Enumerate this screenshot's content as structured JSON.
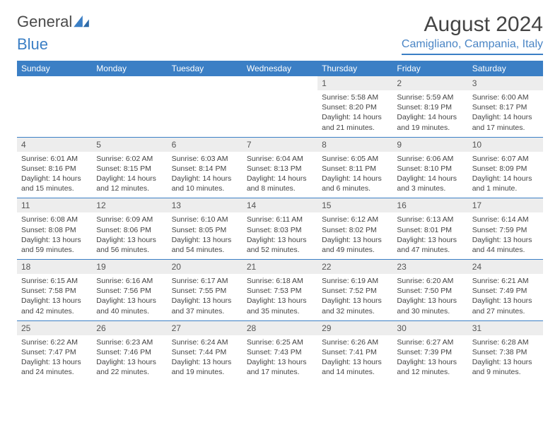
{
  "logo": {
    "part1": "General",
    "part2": "Blue"
  },
  "title": "August 2024",
  "location": "Camigliano, Campania, Italy",
  "colors": {
    "header_bg": "#3b7fc5",
    "header_text": "#ffffff",
    "daynum_bg": "#ededed",
    "rule": "#3b7fc5",
    "location_text": "#4a85c5"
  },
  "labels": {
    "sunrise": "Sunrise:",
    "sunset": "Sunset:",
    "daylight": "Daylight:"
  },
  "weekdays": [
    "Sunday",
    "Monday",
    "Tuesday",
    "Wednesday",
    "Thursday",
    "Friday",
    "Saturday"
  ],
  "weeks": [
    [
      null,
      null,
      null,
      null,
      {
        "d": "1",
        "sr": "5:58 AM",
        "ss": "8:20 PM",
        "dl": "14 hours and 21 minutes."
      },
      {
        "d": "2",
        "sr": "5:59 AM",
        "ss": "8:19 PM",
        "dl": "14 hours and 19 minutes."
      },
      {
        "d": "3",
        "sr": "6:00 AM",
        "ss": "8:17 PM",
        "dl": "14 hours and 17 minutes."
      }
    ],
    [
      {
        "d": "4",
        "sr": "6:01 AM",
        "ss": "8:16 PM",
        "dl": "14 hours and 15 minutes."
      },
      {
        "d": "5",
        "sr": "6:02 AM",
        "ss": "8:15 PM",
        "dl": "14 hours and 12 minutes."
      },
      {
        "d": "6",
        "sr": "6:03 AM",
        "ss": "8:14 PM",
        "dl": "14 hours and 10 minutes."
      },
      {
        "d": "7",
        "sr": "6:04 AM",
        "ss": "8:13 PM",
        "dl": "14 hours and 8 minutes."
      },
      {
        "d": "8",
        "sr": "6:05 AM",
        "ss": "8:11 PM",
        "dl": "14 hours and 6 minutes."
      },
      {
        "d": "9",
        "sr": "6:06 AM",
        "ss": "8:10 PM",
        "dl": "14 hours and 3 minutes."
      },
      {
        "d": "10",
        "sr": "6:07 AM",
        "ss": "8:09 PM",
        "dl": "14 hours and 1 minute."
      }
    ],
    [
      {
        "d": "11",
        "sr": "6:08 AM",
        "ss": "8:08 PM",
        "dl": "13 hours and 59 minutes."
      },
      {
        "d": "12",
        "sr": "6:09 AM",
        "ss": "8:06 PM",
        "dl": "13 hours and 56 minutes."
      },
      {
        "d": "13",
        "sr": "6:10 AM",
        "ss": "8:05 PM",
        "dl": "13 hours and 54 minutes."
      },
      {
        "d": "14",
        "sr": "6:11 AM",
        "ss": "8:03 PM",
        "dl": "13 hours and 52 minutes."
      },
      {
        "d": "15",
        "sr": "6:12 AM",
        "ss": "8:02 PM",
        "dl": "13 hours and 49 minutes."
      },
      {
        "d": "16",
        "sr": "6:13 AM",
        "ss": "8:01 PM",
        "dl": "13 hours and 47 minutes."
      },
      {
        "d": "17",
        "sr": "6:14 AM",
        "ss": "7:59 PM",
        "dl": "13 hours and 44 minutes."
      }
    ],
    [
      {
        "d": "18",
        "sr": "6:15 AM",
        "ss": "7:58 PM",
        "dl": "13 hours and 42 minutes."
      },
      {
        "d": "19",
        "sr": "6:16 AM",
        "ss": "7:56 PM",
        "dl": "13 hours and 40 minutes."
      },
      {
        "d": "20",
        "sr": "6:17 AM",
        "ss": "7:55 PM",
        "dl": "13 hours and 37 minutes."
      },
      {
        "d": "21",
        "sr": "6:18 AM",
        "ss": "7:53 PM",
        "dl": "13 hours and 35 minutes."
      },
      {
        "d": "22",
        "sr": "6:19 AM",
        "ss": "7:52 PM",
        "dl": "13 hours and 32 minutes."
      },
      {
        "d": "23",
        "sr": "6:20 AM",
        "ss": "7:50 PM",
        "dl": "13 hours and 30 minutes."
      },
      {
        "d": "24",
        "sr": "6:21 AM",
        "ss": "7:49 PM",
        "dl": "13 hours and 27 minutes."
      }
    ],
    [
      {
        "d": "25",
        "sr": "6:22 AM",
        "ss": "7:47 PM",
        "dl": "13 hours and 24 minutes."
      },
      {
        "d": "26",
        "sr": "6:23 AM",
        "ss": "7:46 PM",
        "dl": "13 hours and 22 minutes."
      },
      {
        "d": "27",
        "sr": "6:24 AM",
        "ss": "7:44 PM",
        "dl": "13 hours and 19 minutes."
      },
      {
        "d": "28",
        "sr": "6:25 AM",
        "ss": "7:43 PM",
        "dl": "13 hours and 17 minutes."
      },
      {
        "d": "29",
        "sr": "6:26 AM",
        "ss": "7:41 PM",
        "dl": "13 hours and 14 minutes."
      },
      {
        "d": "30",
        "sr": "6:27 AM",
        "ss": "7:39 PM",
        "dl": "13 hours and 12 minutes."
      },
      {
        "d": "31",
        "sr": "6:28 AM",
        "ss": "7:38 PM",
        "dl": "13 hours and 9 minutes."
      }
    ]
  ]
}
